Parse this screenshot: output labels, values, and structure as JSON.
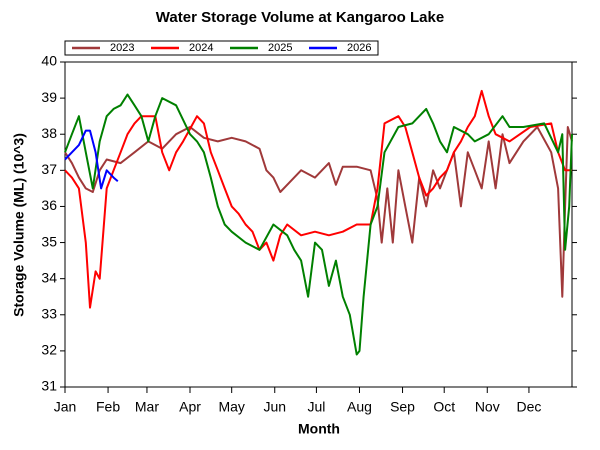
{
  "chart_data": {
    "type": "line",
    "title": "Water Storage Volume at Kangaroo Lake",
    "x_label": "Month",
    "y_label": "Storage Volume (ML) (10^3)",
    "xlim": [
      0,
      365
    ],
    "ylim": [
      31,
      40
    ],
    "xticks": [
      {
        "value": 0,
        "label": "Jan"
      },
      {
        "value": 31,
        "label": "Feb"
      },
      {
        "value": 59,
        "label": "Mar"
      },
      {
        "value": 90,
        "label": "Apr"
      },
      {
        "value": 120,
        "label": "May"
      },
      {
        "value": 151,
        "label": "Jun"
      },
      {
        "value": 181,
        "label": "Jul"
      },
      {
        "value": 212,
        "label": "Aug"
      },
      {
        "value": 243,
        "label": "Sep"
      },
      {
        "value": 273,
        "label": "Oct"
      },
      {
        "value": 304,
        "label": "Nov"
      },
      {
        "value": 334,
        "label": "Dec"
      }
    ],
    "yticks": [
      31,
      32,
      33,
      34,
      35,
      36,
      37,
      38,
      39,
      40
    ],
    "grid": false,
    "series": [
      {
        "name": "2023",
        "color": "#a0393a",
        "x": [
          0,
          5,
          10,
          15,
          20,
          25,
          30,
          40,
          50,
          60,
          70,
          80,
          90,
          100,
          110,
          120,
          130,
          140,
          145,
          150,
          155,
          160,
          170,
          180,
          190,
          195,
          200,
          210,
          220,
          225,
          228,
          232,
          236,
          240,
          245,
          250,
          255,
          260,
          265,
          270,
          280,
          285,
          290,
          295,
          300,
          305,
          310,
          315,
          320,
          330,
          340,
          350,
          355,
          358,
          360,
          362,
          365
        ],
        "values": [
          37.5,
          37.2,
          36.8,
          36.5,
          36.4,
          37.0,
          37.3,
          37.2,
          37.5,
          37.8,
          37.6,
          38.0,
          38.2,
          37.9,
          37.8,
          37.9,
          37.8,
          37.6,
          37.0,
          36.8,
          36.4,
          36.6,
          37.0,
          36.8,
          37.2,
          36.6,
          37.1,
          37.1,
          37.0,
          36.2,
          35.0,
          36.5,
          35.0,
          37.0,
          36.0,
          35.0,
          36.8,
          36.0,
          37.0,
          36.5,
          37.5,
          36.0,
          37.5,
          37.0,
          36.5,
          37.8,
          36.5,
          38.0,
          37.2,
          37.8,
          38.2,
          37.5,
          36.5,
          33.5,
          36.0,
          38.2,
          37.8
        ]
      },
      {
        "name": "2024",
        "color": "#ff0000",
        "x": [
          0,
          5,
          10,
          15,
          18,
          22,
          25,
          30,
          35,
          40,
          45,
          50,
          55,
          65,
          70,
          75,
          80,
          85,
          95,
          100,
          105,
          110,
          115,
          120,
          125,
          130,
          135,
          140,
          145,
          150,
          155,
          160,
          170,
          180,
          190,
          200,
          210,
          220,
          225,
          230,
          240,
          245,
          250,
          255,
          260,
          265,
          270,
          275,
          280,
          285,
          290,
          295,
          300,
          305,
          310,
          320,
          335,
          350,
          355,
          360,
          365
        ],
        "values": [
          37.0,
          36.8,
          36.5,
          35.0,
          33.2,
          34.2,
          34.0,
          36.5,
          37.0,
          37.5,
          38.0,
          38.3,
          38.5,
          38.5,
          37.5,
          37.0,
          37.5,
          37.8,
          38.5,
          38.3,
          37.5,
          37.0,
          36.5,
          36.0,
          35.8,
          35.5,
          35.3,
          34.8,
          35.0,
          34.5,
          35.2,
          35.5,
          35.2,
          35.3,
          35.2,
          35.3,
          35.5,
          35.5,
          36.5,
          38.3,
          38.5,
          38.2,
          37.5,
          36.8,
          36.3,
          36.5,
          36.8,
          37.0,
          37.5,
          37.8,
          38.2,
          38.5,
          39.2,
          38.5,
          38.0,
          37.8,
          38.2,
          38.3,
          37.5,
          37.0,
          37.0
        ]
      },
      {
        "name": "2025",
        "color": "#008000",
        "x": [
          0,
          5,
          10,
          15,
          20,
          25,
          30,
          35,
          40,
          45,
          50,
          55,
          60,
          65,
          70,
          80,
          90,
          95,
          100,
          105,
          110,
          115,
          120,
          130,
          140,
          150,
          160,
          165,
          170,
          175,
          180,
          185,
          190,
          195,
          200,
          205,
          210,
          212,
          215,
          220,
          225,
          230,
          240,
          250,
          255,
          260,
          265,
          270,
          275,
          280,
          290,
          295,
          305,
          315,
          320,
          330,
          345,
          355,
          358,
          360,
          363,
          365
        ],
        "values": [
          37.5,
          38.0,
          38.5,
          37.5,
          36.5,
          37.8,
          38.5,
          38.7,
          38.8,
          39.1,
          38.8,
          38.5,
          37.8,
          38.5,
          39.0,
          38.8,
          38.0,
          37.8,
          37.5,
          36.8,
          36.0,
          35.5,
          35.3,
          35.0,
          34.8,
          35.5,
          35.2,
          34.8,
          34.5,
          33.5,
          35.0,
          34.8,
          33.8,
          34.5,
          33.5,
          33.0,
          31.9,
          32.0,
          33.5,
          35.5,
          36.0,
          37.5,
          38.2,
          38.3,
          38.5,
          38.7,
          38.3,
          37.8,
          37.5,
          38.2,
          38.0,
          37.8,
          38.0,
          38.5,
          38.2,
          38.2,
          38.3,
          37.5,
          38.0,
          34.8,
          36.0,
          38.0
        ]
      },
      {
        "name": "2026",
        "color": "#0000ff",
        "x": [
          0,
          5,
          10,
          15,
          18,
          22,
          26,
          30,
          35,
          38
        ],
        "values": [
          37.3,
          37.5,
          37.7,
          38.1,
          38.1,
          37.5,
          36.5,
          37.0,
          36.8,
          36.7
        ]
      }
    ]
  }
}
